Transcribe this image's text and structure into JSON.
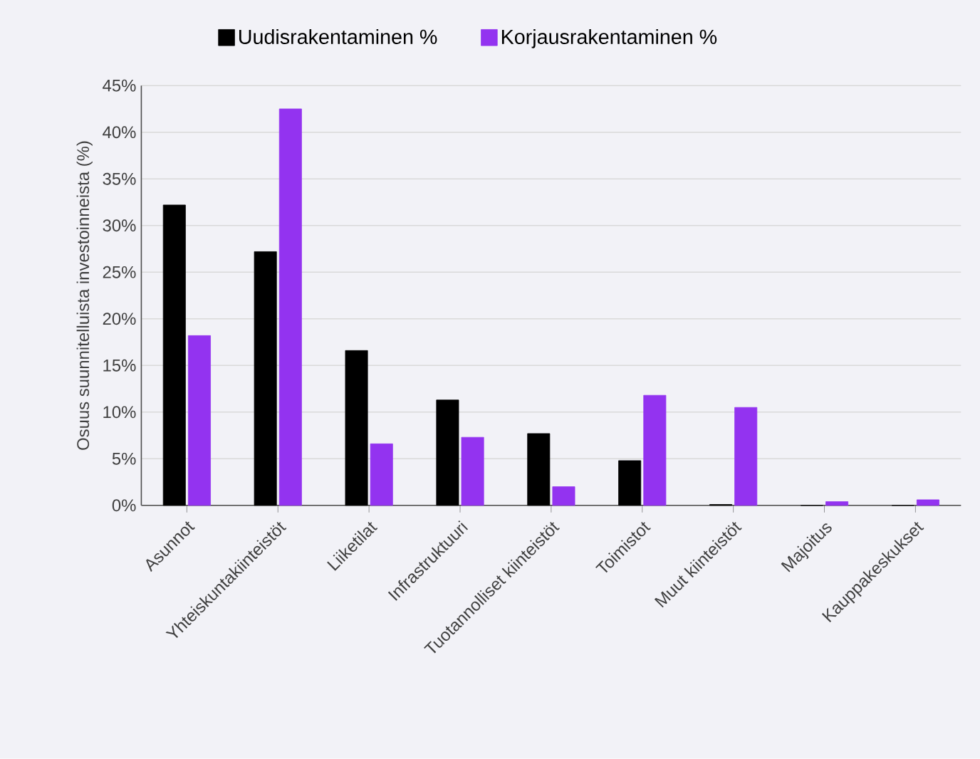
{
  "chart_data": {
    "type": "bar",
    "ylabel": "Osuus suunnitelluista investoinneista (%)",
    "categories": [
      "Asunnot",
      "Yhteiskuntakiinteistöt",
      "Liiketilat",
      "Infrastruktuuri",
      "Tuotannolliset kiinteistöt",
      "Toimistot",
      "Muut kiinteistöt",
      "Majoitus",
      "Kauppakeskukset"
    ],
    "series": [
      {
        "name": "Uudisrakentaminen %",
        "color": "#000000",
        "values": [
          32.2,
          27.2,
          16.6,
          11.3,
          7.7,
          4.8,
          0.1,
          0,
          0
        ]
      },
      {
        "name": "Korjausrakentaminen %",
        "color": "#9333f0",
        "values": [
          18.2,
          42.5,
          6.6,
          7.3,
          2.0,
          11.8,
          10.5,
          0.4,
          0.6
        ]
      }
    ],
    "ylim": [
      0,
      45
    ],
    "yticks": [
      {
        "value": 0,
        "label": "0%"
      },
      {
        "value": 5,
        "label": "5%"
      },
      {
        "value": 10,
        "label": "10%"
      },
      {
        "value": 15,
        "label": "15%"
      },
      {
        "value": 20,
        "label": "20%"
      },
      {
        "value": 25,
        "label": "25%"
      },
      {
        "value": 30,
        "label": "30%"
      },
      {
        "value": 35,
        "label": "35%"
      },
      {
        "value": 40,
        "label": "40%"
      },
      {
        "value": 45,
        "label": "45%"
      }
    ],
    "grid": "y",
    "legend": "top"
  }
}
